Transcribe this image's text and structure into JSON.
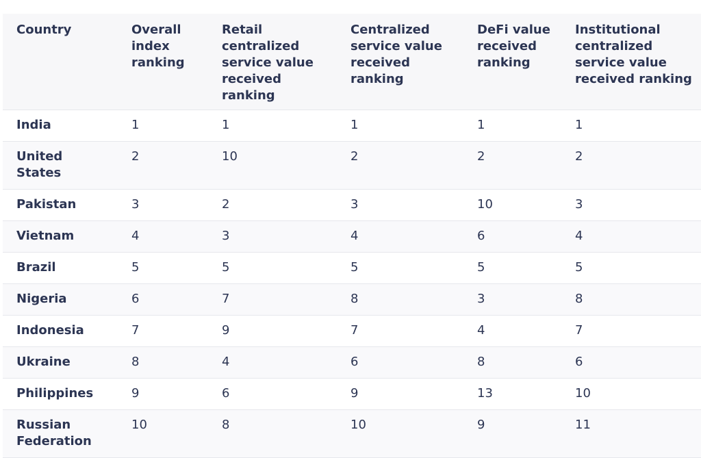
{
  "table": {
    "header": [
      "Country",
      "Overall index ranking",
      "Retail centralized service value received ranking",
      "Centralized service value received ranking",
      "DeFi value received ranking",
      "Institutional centralized service value received ranking"
    ],
    "rows": [
      [
        "India",
        1,
        1,
        1,
        1,
        1
      ],
      [
        "United States",
        2,
        10,
        2,
        2,
        2
      ],
      [
        "Pakistan",
        3,
        2,
        3,
        10,
        3
      ],
      [
        "Vietnam",
        4,
        3,
        4,
        6,
        4
      ],
      [
        "Brazil",
        5,
        5,
        5,
        5,
        5
      ],
      [
        "Nigeria",
        6,
        7,
        8,
        3,
        8
      ],
      [
        "Indonesia",
        7,
        9,
        7,
        4,
        7
      ],
      [
        "Ukraine",
        8,
        4,
        6,
        8,
        6
      ],
      [
        "Philippines",
        9,
        6,
        9,
        13,
        10
      ],
      [
        "Russian Federation",
        10,
        8,
        10,
        9,
        11
      ]
    ]
  }
}
